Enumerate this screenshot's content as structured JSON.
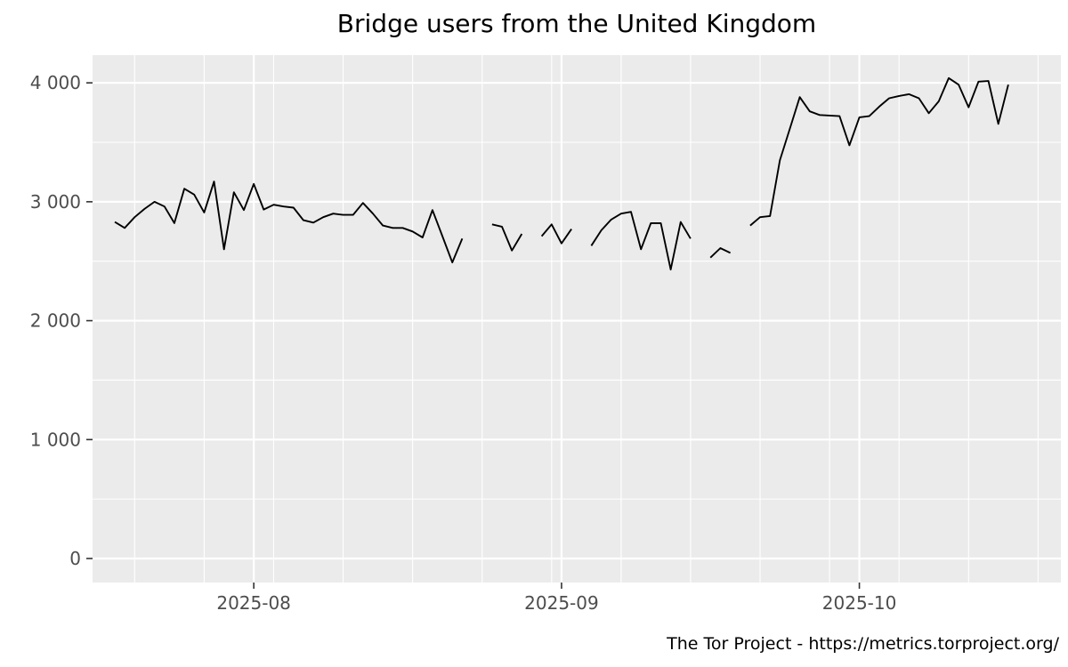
{
  "page": {
    "title": "Bridge users from the United Kingdom",
    "caption": "The Tor Project - https://metrics.torproject.org/"
  },
  "chart_data": {
    "type": "line",
    "title": "Bridge users from the United Kingdom",
    "xlabel": "",
    "ylabel": "",
    "legend": "none",
    "grid": true,
    "series": [
      {
        "name": "bridge-users-united-kingdom",
        "color": "#000000",
        "x_start_date": "2025-07-18",
        "x_interval": "1 day",
        "values": [
          2830,
          2780,
          2870,
          2940,
          3000,
          2960,
          2820,
          3110,
          3060,
          2910,
          3170,
          2600,
          3080,
          2930,
          3150,
          2935,
          2975,
          2960,
          2950,
          2845,
          2825,
          2870,
          2900,
          2890,
          2890,
          2990,
          2900,
          2800,
          2780,
          2780,
          2750,
          2700,
          2930,
          2710,
          2490,
          2690,
          null,
          null,
          2810,
          2790,
          2590,
          2730,
          null,
          2710,
          2810,
          2650,
          2770,
          null,
          2630,
          2760,
          2850,
          2900,
          2915,
          2600,
          2820,
          2820,
          2430,
          2830,
          2690,
          null,
          2530,
          2610,
          2570,
          null,
          2800,
          2870,
          2880,
          3350,
          3615,
          3880,
          3760,
          3730,
          3725,
          3720,
          3475,
          3710,
          3720,
          3800,
          3870,
          3890,
          3905,
          3870,
          3745,
          3845,
          4040,
          3985,
          3795,
          4010,
          4015,
          3655,
          3985
        ]
      }
    ],
    "x_axis": {
      "tick_labels": [
        "2025-08",
        "2025-09",
        "2025-10"
      ],
      "tick_day_offsets": [
        14,
        45,
        75
      ],
      "minor_day_offsets": [
        2,
        9,
        16,
        23,
        30,
        37,
        44,
        51,
        58,
        65,
        72,
        79,
        86,
        93
      ],
      "xlim_days": [
        -2.24,
        95.3
      ]
    },
    "y_axis": {
      "tick_values": [
        0,
        1000,
        2000,
        3000,
        4000
      ],
      "tick_labels": [
        "0",
        "1 000",
        "2 000",
        "3 000",
        "4 000"
      ],
      "minor_values": [
        500,
        1500,
        2500,
        3500
      ],
      "ylim": [
        -202,
        4233
      ]
    },
    "style": {
      "panel_bg": "#EBEBEB",
      "grid_color": "#FFFFFF",
      "axis_text_color": "#4D4D4D",
      "tick_color": "#333333",
      "line_color": "#000000",
      "line_width": 1.9
    }
  }
}
